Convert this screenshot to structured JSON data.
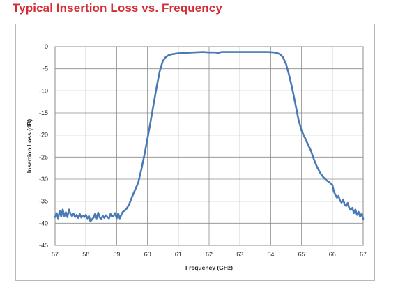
{
  "page": {
    "title": "Typical Insertion Loss vs. Frequency"
  },
  "chart_data": {
    "type": "line",
    "title": "",
    "xlabel": "Frequency (GHz)",
    "ylabel": "Insertion Loss (dB)",
    "xlim": [
      57,
      67
    ],
    "ylim": [
      -45,
      0
    ],
    "x_ticks": [
      57,
      58,
      59,
      60,
      61,
      62,
      63,
      64,
      65,
      66,
      67
    ],
    "y_ticks": [
      0,
      -5,
      -10,
      -15,
      -20,
      -25,
      -30,
      -35,
      -40,
      -45
    ],
    "x_tick_labels": [
      "57",
      "58",
      "59",
      "60",
      "61",
      "62",
      "63",
      "64",
      "65",
      "66",
      "67"
    ],
    "y_tick_labels": [
      "0",
      "-5",
      "-10",
      "-15",
      "-20",
      "-25",
      "-30",
      "-35",
      "-40",
      "-45"
    ],
    "grid": true,
    "legend": "none",
    "line_color": "#4a7ab5",
    "series": [
      {
        "x": [
          57.0,
          57.05,
          57.1,
          57.15,
          57.2,
          57.25,
          57.3,
          57.35,
          57.4,
          57.45,
          57.5,
          57.55,
          57.6,
          57.65,
          57.7,
          57.75,
          57.8,
          57.85,
          57.9,
          57.95,
          58.0,
          58.05,
          58.1,
          58.15,
          58.2,
          58.25,
          58.3,
          58.35,
          58.4,
          58.45,
          58.5,
          58.55,
          58.6,
          58.65,
          58.7,
          58.75,
          58.8,
          58.85,
          58.9,
          58.95,
          59.0,
          59.05,
          59.1,
          59.15,
          59.2,
          59.3,
          59.4,
          59.5,
          59.6,
          59.7,
          59.8,
          59.9,
          60.0,
          60.1,
          60.2,
          60.3,
          60.4,
          60.5,
          60.6,
          60.7,
          60.8,
          60.9,
          61.0,
          61.2,
          61.5,
          61.8,
          62.0,
          62.2,
          62.3,
          62.4,
          62.6,
          62.8,
          63.0,
          63.3,
          63.6,
          63.9,
          64.1,
          64.2,
          64.3,
          64.4,
          64.5,
          64.6,
          64.7,
          64.8,
          64.9,
          65.0,
          65.1,
          65.2,
          65.3,
          65.4,
          65.5,
          65.6,
          65.7,
          65.8,
          65.9,
          65.95,
          66.0,
          66.05,
          66.1,
          66.15,
          66.2,
          66.25,
          66.3,
          66.35,
          66.4,
          66.45,
          66.5,
          66.55,
          66.6,
          66.65,
          66.7,
          66.75,
          66.8,
          66.85,
          66.9,
          66.95,
          67.0
        ],
        "y": [
          -38.6,
          -37.7,
          -38.9,
          -37.2,
          -38.5,
          -36.9,
          -38.4,
          -37.5,
          -38.6,
          -36.9,
          -37.9,
          -38.4,
          -37.8,
          -38.6,
          -38.1,
          -38.8,
          -37.9,
          -38.7,
          -38.3,
          -38.6,
          -38.1,
          -38.9,
          -38.4,
          -39.6,
          -39.1,
          -38.7,
          -37.8,
          -38.9,
          -37.6,
          -38.7,
          -39.0,
          -38.3,
          -38.8,
          -38.2,
          -38.6,
          -38.9,
          -37.9,
          -38.5,
          -38.3,
          -37.7,
          -38.9,
          -37.8,
          -38.9,
          -38.1,
          -37.4,
          -36.9,
          -35.8,
          -34.0,
          -32.4,
          -30.8,
          -27.8,
          -24.5,
          -20.8,
          -17.0,
          -13.0,
          -9.0,
          -5.5,
          -3.2,
          -2.3,
          -1.9,
          -1.7,
          -1.6,
          -1.5,
          -1.4,
          -1.3,
          -1.2,
          -1.3,
          -1.3,
          -1.4,
          -1.2,
          -1.2,
          -1.2,
          -1.2,
          -1.2,
          -1.2,
          -1.2,
          -1.3,
          -1.4,
          -1.7,
          -2.4,
          -4.0,
          -6.5,
          -9.5,
          -13.0,
          -16.5,
          -19.0,
          -20.5,
          -22.0,
          -23.5,
          -25.5,
          -27.2,
          -28.5,
          -29.5,
          -30.2,
          -30.7,
          -31.0,
          -31.3,
          -32.8,
          -33.6,
          -34.2,
          -33.8,
          -34.9,
          -35.3,
          -34.6,
          -35.8,
          -36.1,
          -35.4,
          -36.6,
          -37.0,
          -36.5,
          -37.7,
          -36.9,
          -38.1,
          -37.4,
          -38.5,
          -37.8,
          -39.0
        ]
      }
    ]
  }
}
